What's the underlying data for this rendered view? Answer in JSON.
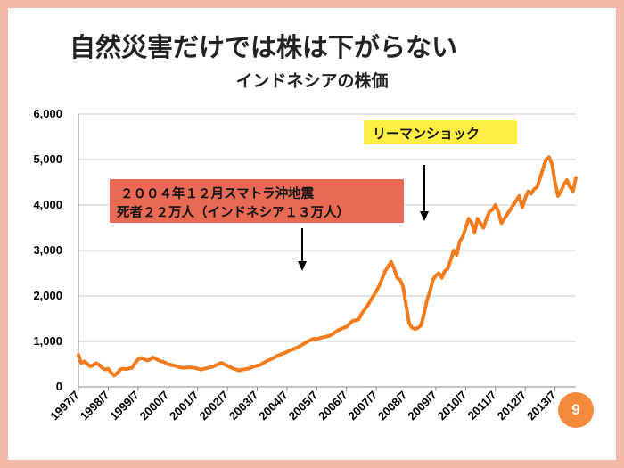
{
  "title": "自然災害だけでは株は下がらない",
  "subtitle": "インドネシアの株価",
  "annotations": {
    "earthquake_line1": "２００４年１２月スマトラ沖地震",
    "earthquake_line2": "死者２２万人（インドネシア１３万人）",
    "lehman": "リーマンショック"
  },
  "page_number": "9",
  "colors": {
    "series": "#f07c1e",
    "earthquake_box": "#e86a55",
    "lehman_box": "#ffee44",
    "page_badge": "#f58a3c",
    "frame": "#f2b8a8"
  },
  "chart_data": {
    "type": "line",
    "title": "インドネシアの株価",
    "ylim": [
      0,
      6000
    ],
    "yticks": [
      0,
      1000,
      2000,
      3000,
      4000,
      5000,
      6000
    ],
    "ytick_labels": [
      "0",
      "1,000",
      "2,000",
      "3,000",
      "4,000",
      "5,000",
      "6,000"
    ],
    "xticks": [
      "1997/7",
      "1998/7",
      "1999/7",
      "2000/7",
      "2001/7",
      "2002/7",
      "2003/7",
      "2004/7",
      "2005/7",
      "2006/7",
      "2007/7",
      "2008/7",
      "2009/7",
      "2010/7",
      "2011/7",
      "2012/7",
      "2013/7"
    ],
    "xrange": [
      1997.5,
      2014.2
    ],
    "grid": "horizontal",
    "legend": "none",
    "series": [
      {
        "x": [
          1997.5,
          1997.6,
          1997.7,
          1997.8,
          1997.9,
          1998.0,
          1998.1,
          1998.2,
          1998.3,
          1998.4,
          1998.5,
          1998.6,
          1998.7,
          1998.8,
          1998.9,
          1999.0,
          1999.1,
          1999.3,
          1999.4,
          1999.5,
          1999.6,
          1999.8,
          1999.9,
          2000.0,
          2000.2,
          2000.4,
          2000.5,
          2000.7,
          2000.9,
          2001.0,
          2001.2,
          2001.4,
          2001.6,
          2001.8,
          2002.0,
          2002.3,
          2002.5,
          2002.7,
          2002.9,
          2003.0,
          2003.2,
          2003.4,
          2003.6,
          2003.8,
          2004.0,
          2004.2,
          2004.4,
          2004.6,
          2004.8,
          2005.0,
          2005.2,
          2005.4,
          2005.5,
          2005.7,
          2005.9,
          2006.0,
          2006.2,
          2006.4,
          2006.5,
          2006.7,
          2006.9,
          2007.0,
          2007.2,
          2007.4,
          2007.5,
          2007.6,
          2007.8,
          2007.9,
          2008.0,
          2008.1,
          2008.2,
          2008.3,
          2008.4,
          2008.5,
          2008.6,
          2008.7,
          2008.8,
          2008.9,
          2009.0,
          2009.1,
          2009.2,
          2009.3,
          2009.4,
          2009.5,
          2009.6,
          2009.7,
          2009.8,
          2009.9,
          2010.0,
          2010.1,
          2010.2,
          2010.3,
          2010.4,
          2010.5,
          2010.6,
          2010.7,
          2010.8,
          2010.9,
          2011.0,
          2011.1,
          2011.2,
          2011.3,
          2011.4,
          2011.5,
          2011.6,
          2011.7,
          2011.8,
          2011.9,
          2012.0,
          2012.1,
          2012.2,
          2012.3,
          2012.4,
          2012.5,
          2012.6,
          2012.7,
          2012.8,
          2012.9,
          2013.0,
          2013.1,
          2013.2,
          2013.3,
          2013.4,
          2013.5,
          2013.6,
          2013.7,
          2013.8,
          2013.9,
          2014.0,
          2014.1,
          2014.2
        ],
        "y": [
          700,
          520,
          560,
          500,
          450,
          480,
          520,
          480,
          420,
          380,
          400,
          310,
          250,
          300,
          380,
          400,
          390,
          420,
          520,
          600,
          640,
          580,
          600,
          650,
          580,
          540,
          500,
          470,
          430,
          420,
          430,
          420,
          380,
          410,
          440,
          530,
          460,
          400,
          360,
          380,
          400,
          450,
          480,
          560,
          620,
          690,
          740,
          800,
          850,
          920,
          1000,
          1060,
          1050,
          1090,
          1120,
          1150,
          1240,
          1300,
          1320,
          1450,
          1480,
          1600,
          1780,
          2000,
          2100,
          2230,
          2550,
          2650,
          2750,
          2600,
          2400,
          2350,
          2200,
          1800,
          1400,
          1300,
          1270,
          1300,
          1350,
          1600,
          1900,
          2100,
          2350,
          2450,
          2500,
          2400,
          2550,
          2600,
          2800,
          3000,
          2900,
          3200,
          3300,
          3500,
          3700,
          3600,
          3400,
          3700,
          3600,
          3500,
          3700,
          3850,
          3900,
          4000,
          3850,
          3600,
          3700,
          3800,
          3900,
          4000,
          4100,
          4200,
          3950,
          4150,
          4300,
          4250,
          4350,
          4400,
          4600,
          4800,
          5000,
          5050,
          4900,
          4500,
          4200,
          4300,
          4450,
          4550,
          4400,
          4300,
          4600
        ]
      }
    ]
  }
}
